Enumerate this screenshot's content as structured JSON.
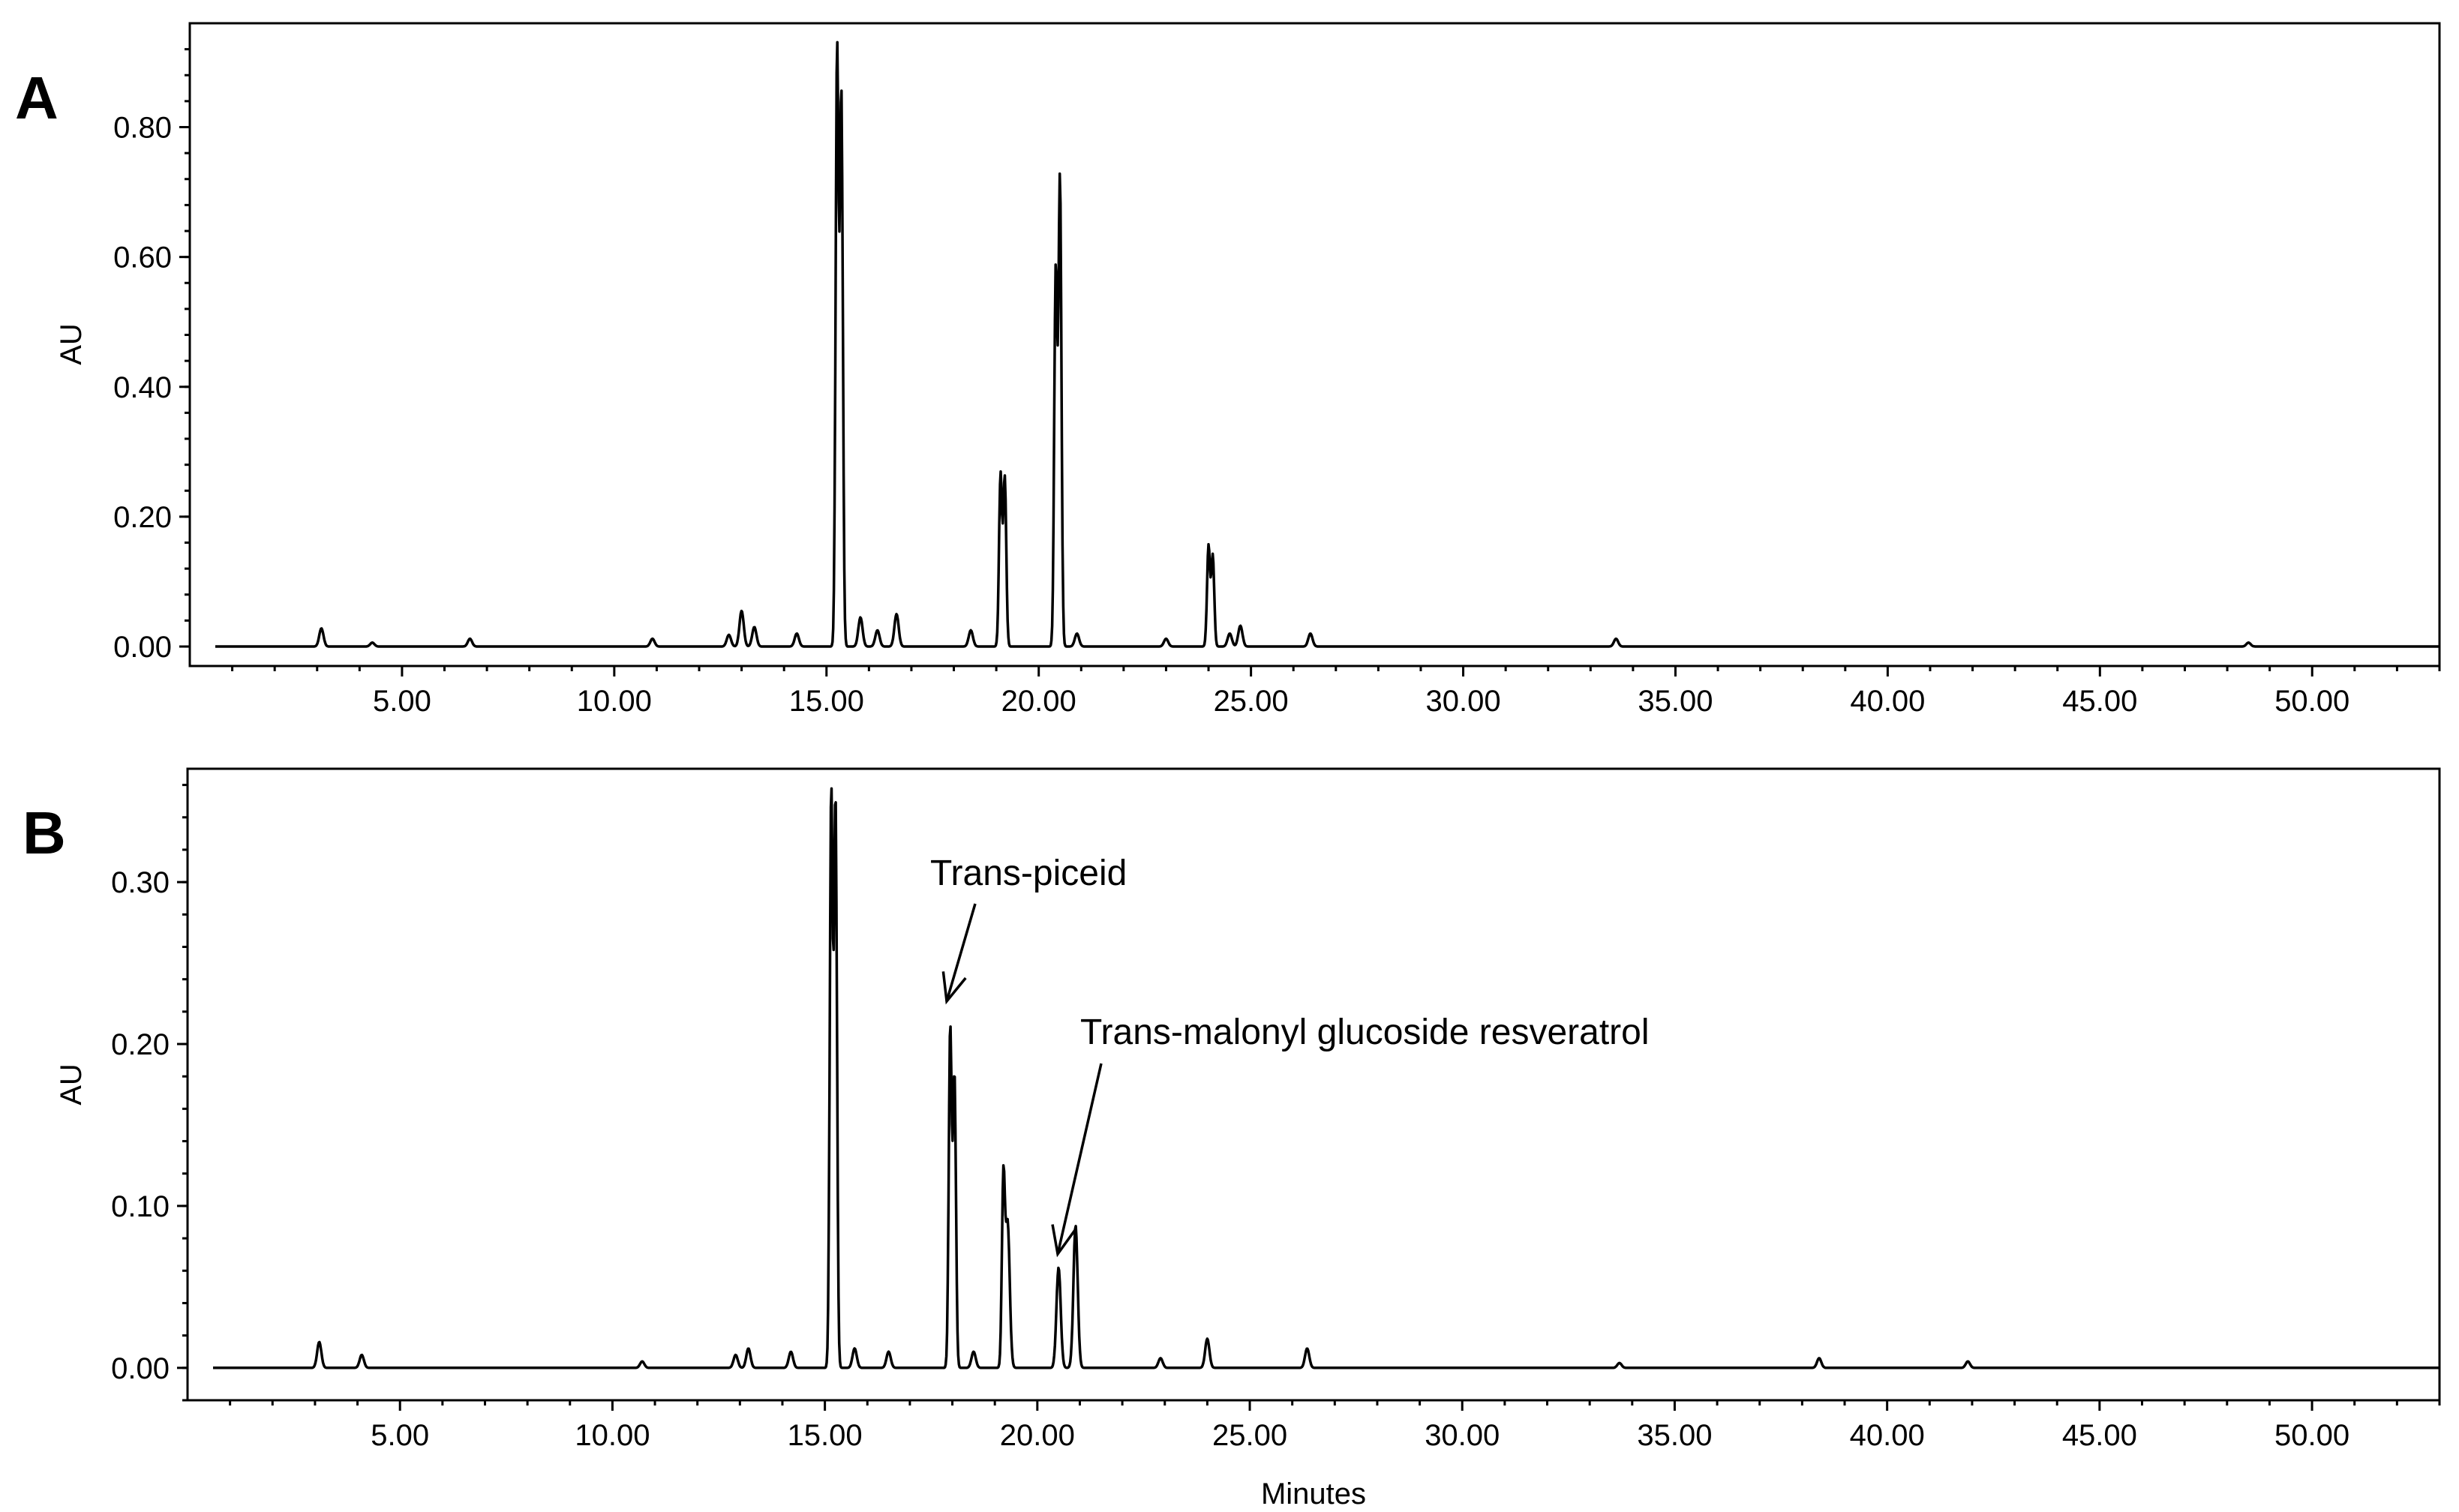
{
  "chart_data": [
    {
      "type": "line",
      "panel_label": "A",
      "ylabel": "AU",
      "xlabel": "",
      "xlim": [
        0,
        53
      ],
      "ylim": [
        -0.03,
        0.96
      ],
      "x_ticks": [
        "5.00",
        "10.00",
        "15.00",
        "20.00",
        "25.00",
        "30.00",
        "35.00",
        "40.00",
        "45.00",
        "50.00"
      ],
      "y_ticks": [
        "0.00",
        "0.20",
        "0.40",
        "0.60",
        "0.80"
      ],
      "baseline": 0.0,
      "peaks": [
        {
          "x": 3.1,
          "y": 0.028
        },
        {
          "x": 4.3,
          "y": 0.006
        },
        {
          "x": 6.6,
          "y": 0.012
        },
        {
          "x": 10.9,
          "y": 0.012
        },
        {
          "x": 12.7,
          "y": 0.018
        },
        {
          "x": 13.0,
          "y": 0.055
        },
        {
          "x": 13.3,
          "y": 0.03
        },
        {
          "x": 14.3,
          "y": 0.02
        },
        {
          "x": 15.25,
          "y": 0.92
        },
        {
          "x": 15.35,
          "y": 0.85
        },
        {
          "x": 15.8,
          "y": 0.045
        },
        {
          "x": 16.2,
          "y": 0.025
        },
        {
          "x": 16.65,
          "y": 0.05
        },
        {
          "x": 18.4,
          "y": 0.025
        },
        {
          "x": 19.1,
          "y": 0.265
        },
        {
          "x": 19.2,
          "y": 0.26
        },
        {
          "x": 20.4,
          "y": 0.58
        },
        {
          "x": 20.5,
          "y": 0.72
        },
        {
          "x": 20.9,
          "y": 0.02
        },
        {
          "x": 23.0,
          "y": 0.012
        },
        {
          "x": 24.0,
          "y": 0.155
        },
        {
          "x": 24.1,
          "y": 0.14
        },
        {
          "x": 24.5,
          "y": 0.02
        },
        {
          "x": 24.75,
          "y": 0.032
        },
        {
          "x": 26.4,
          "y": 0.02
        },
        {
          "x": 33.6,
          "y": 0.012
        },
        {
          "x": 48.5,
          "y": 0.006
        }
      ]
    },
    {
      "type": "line",
      "panel_label": "B",
      "ylabel": "AU",
      "xlabel": "Minutes",
      "xlim": [
        0,
        53
      ],
      "ylim": [
        -0.02,
        0.37
      ],
      "x_ticks": [
        "5.00",
        "10.00",
        "15.00",
        "20.00",
        "25.00",
        "30.00",
        "35.00",
        "40.00",
        "45.00",
        "50.00"
      ],
      "y_ticks": [
        "0.00",
        "0.10",
        "0.20",
        "0.30"
      ],
      "baseline": 0.0,
      "peaks": [
        {
          "x": 3.1,
          "y": 0.016
        },
        {
          "x": 4.1,
          "y": 0.008
        },
        {
          "x": 10.7,
          "y": 0.004
        },
        {
          "x": 12.9,
          "y": 0.008
        },
        {
          "x": 13.2,
          "y": 0.012
        },
        {
          "x": 14.2,
          "y": 0.01
        },
        {
          "x": 15.15,
          "y": 0.355
        },
        {
          "x": 15.25,
          "y": 0.35
        },
        {
          "x": 15.7,
          "y": 0.012
        },
        {
          "x": 16.5,
          "y": 0.01
        },
        {
          "x": 17.95,
          "y": 0.21
        },
        {
          "x": 18.05,
          "y": 0.18
        },
        {
          "x": 18.5,
          "y": 0.01
        },
        {
          "x": 19.2,
          "y": 0.112
        },
        {
          "x": 19.3,
          "y": 0.09
        },
        {
          "x": 20.5,
          "y": 0.062
        },
        {
          "x": 20.9,
          "y": 0.088
        },
        {
          "x": 22.9,
          "y": 0.006
        },
        {
          "x": 24.0,
          "y": 0.018
        },
        {
          "x": 26.35,
          "y": 0.012
        },
        {
          "x": 33.7,
          "y": 0.003
        },
        {
          "x": 38.4,
          "y": 0.006
        },
        {
          "x": 41.9,
          "y": 0.004
        }
      ],
      "annotations": [
        {
          "text": "Trans-piceid",
          "target_x": 17.95,
          "target_y": 0.21
        },
        {
          "text": "Trans-malonyl  glucoside  resveratrol",
          "target_x": 20.5,
          "target_y": 0.062
        }
      ]
    }
  ]
}
